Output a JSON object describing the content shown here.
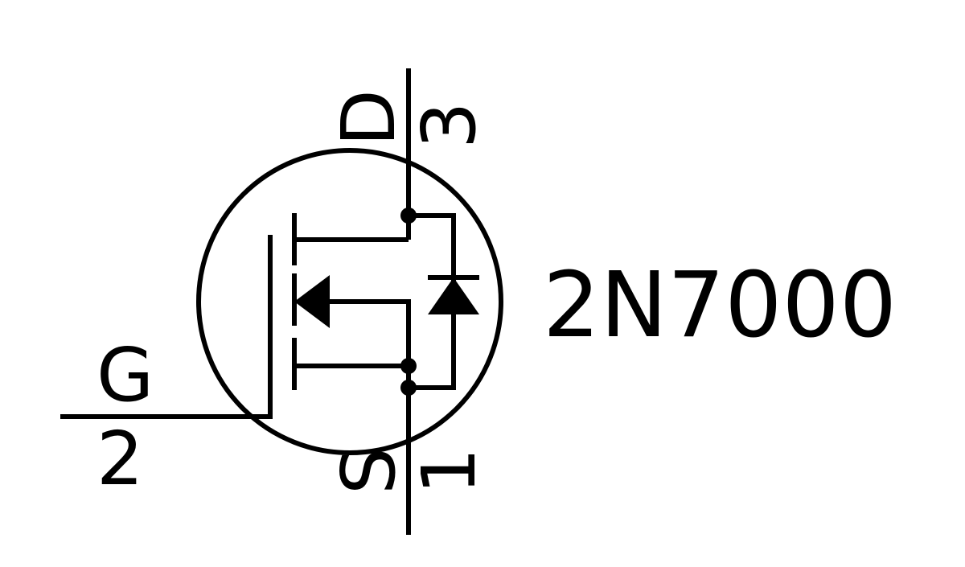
{
  "component": {
    "part_number": "2N7000",
    "pins": {
      "drain": {
        "name": "D",
        "number": "3"
      },
      "gate": {
        "name": "G",
        "number": "2"
      },
      "source": {
        "name": "S",
        "number": "1"
      }
    }
  },
  "colors": {
    "ink": "#000000",
    "background": "#ffffff"
  }
}
